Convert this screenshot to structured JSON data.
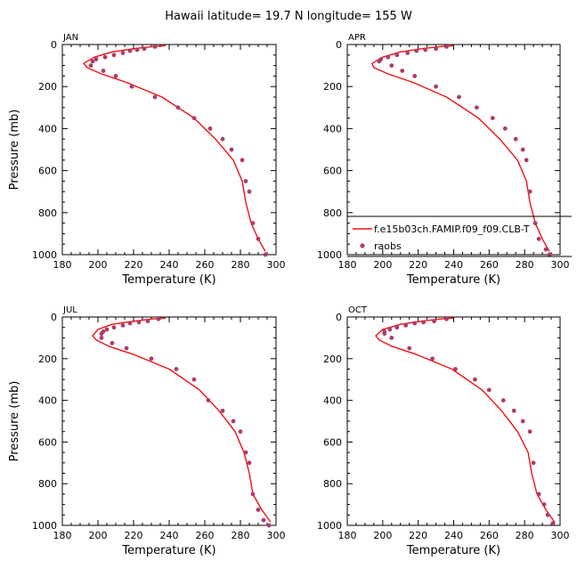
{
  "figure": {
    "title": "Hawaii   latitude= 19.7 N longitude= 155 W"
  },
  "colors": {
    "model_line": "#ee1111",
    "obs_marker": "#b03a6a",
    "axis": "#000000"
  },
  "legend": {
    "placement": "inside APR panel, lower",
    "model_label": "f.e15b03ch.FAMIP.f09_f09.CLB-T",
    "obs_label": "raobs"
  },
  "chart_data": [
    {
      "type": "scatter",
      "panel": "JAN",
      "xlabel": "Temperature (K)",
      "ylabel": "Pressure (mb)",
      "xlim": [
        180,
        300
      ],
      "ylim": [
        1000,
        0
      ],
      "y_inverted": true,
      "xticks": [
        180,
        200,
        220,
        240,
        260,
        280,
        300
      ],
      "yticks": [
        0,
        200,
        400,
        600,
        800,
        1000
      ],
      "series": [
        {
          "name": "f.e15b03ch.FAMIP.f09_f09.CLB-T",
          "kind": "line",
          "x": [
            238,
            230,
            220,
            208,
            198,
            192,
            194,
            202,
            216,
            236,
            254,
            266,
            276,
            281,
            283,
            286,
            290,
            294
          ],
          "y": [
            5,
            10,
            20,
            35,
            60,
            90,
            110,
            140,
            180,
            250,
            350,
            450,
            550,
            650,
            750,
            850,
            925,
            985
          ]
        },
        {
          "name": "raobs",
          "kind": "scatter",
          "x": [
            232,
            226,
            222,
            218,
            214,
            209,
            204,
            199,
            197,
            196,
            203,
            210,
            219,
            232,
            245,
            254,
            263,
            270,
            275,
            281,
            283,
            285,
            287,
            290,
            294
          ],
          "y": [
            10,
            20,
            25,
            30,
            40,
            50,
            60,
            70,
            80,
            100,
            125,
            150,
            200,
            250,
            300,
            350,
            400,
            450,
            500,
            550,
            650,
            700,
            850,
            925,
            1000
          ]
        }
      ]
    },
    {
      "type": "scatter",
      "panel": "APR",
      "xlabel": "Temperature (K)",
      "ylabel": "",
      "xlim": [
        180,
        300
      ],
      "ylim": [
        1000,
        0
      ],
      "y_inverted": true,
      "xticks": [
        180,
        200,
        220,
        240,
        260,
        280,
        300
      ],
      "yticks": [
        0,
        200,
        400,
        600,
        800,
        1000
      ],
      "series": [
        {
          "name": "f.e15b03ch.FAMIP.f09_f09.CLB-T",
          "kind": "line",
          "x": [
            240,
            232,
            222,
            210,
            200,
            194,
            195,
            203,
            217,
            236,
            254,
            266,
            276,
            281,
            283,
            286,
            290,
            294
          ],
          "y": [
            5,
            10,
            20,
            35,
            60,
            90,
            110,
            140,
            180,
            250,
            350,
            450,
            550,
            650,
            750,
            850,
            925,
            985
          ]
        },
        {
          "name": "raobs",
          "kind": "scatter",
          "x": [
            236,
            230,
            224,
            219,
            214,
            208,
            203,
            199,
            198,
            205,
            211,
            218,
            230,
            243,
            253,
            262,
            269,
            275,
            279,
            281,
            283,
            286,
            288,
            292,
            294
          ],
          "y": [
            10,
            20,
            25,
            30,
            40,
            50,
            60,
            70,
            80,
            100,
            125,
            150,
            200,
            250,
            300,
            350,
            400,
            450,
            500,
            550,
            700,
            850,
            925,
            975,
            1000
          ]
        }
      ]
    },
    {
      "type": "scatter",
      "panel": "JUL",
      "xlabel": "Temperature (K)",
      "ylabel": "Pressure (mb)",
      "xlim": [
        180,
        300
      ],
      "ylim": [
        1000,
        0
      ],
      "y_inverted": true,
      "xticks": [
        180,
        200,
        220,
        240,
        260,
        280,
        300
      ],
      "yticks": [
        0,
        200,
        400,
        600,
        800,
        1000
      ],
      "series": [
        {
          "name": "f.e15b03ch.FAMIP.f09_f09.CLB-T",
          "kind": "line",
          "x": [
            238,
            230,
            220,
            208,
            200,
            197,
            199,
            206,
            220,
            240,
            257,
            268,
            277,
            282,
            285,
            287,
            292,
            297
          ],
          "y": [
            5,
            10,
            20,
            35,
            60,
            90,
            110,
            140,
            180,
            250,
            350,
            450,
            550,
            650,
            750,
            850,
            925,
            985
          ]
        },
        {
          "name": "raobs",
          "kind": "scatter",
          "x": [
            234,
            228,
            223,
            218,
            214,
            209,
            205,
            203,
            202,
            202,
            208,
            216,
            230,
            244,
            254,
            262,
            270,
            276,
            280,
            283,
            285,
            287,
            290,
            293,
            296
          ],
          "y": [
            10,
            20,
            25,
            30,
            40,
            50,
            60,
            70,
            80,
            100,
            125,
            150,
            200,
            250,
            300,
            400,
            450,
            500,
            550,
            650,
            700,
            850,
            925,
            975,
            1000
          ]
        }
      ]
    },
    {
      "type": "scatter",
      "panel": "OCT",
      "xlabel": "Temperature (K)",
      "ylabel": "",
      "xlim": [
        180,
        300
      ],
      "ylim": [
        1000,
        0
      ],
      "y_inverted": true,
      "xticks": [
        180,
        200,
        220,
        240,
        260,
        280,
        300
      ],
      "yticks": [
        0,
        200,
        400,
        600,
        800,
        1000
      ],
      "series": [
        {
          "name": "f.e15b03ch.FAMIP.f09_f09.CLB-T",
          "kind": "line",
          "x": [
            240,
            232,
            222,
            210,
            200,
            196,
            198,
            205,
            219,
            239,
            256,
            267,
            276,
            282,
            284,
            287,
            292,
            297
          ],
          "y": [
            5,
            10,
            20,
            35,
            60,
            90,
            110,
            140,
            180,
            250,
            350,
            450,
            550,
            650,
            750,
            850,
            925,
            985
          ]
        },
        {
          "name": "raobs",
          "kind": "scatter",
          "x": [
            236,
            229,
            223,
            218,
            213,
            208,
            204,
            201,
            201,
            205,
            215,
            228,
            241,
            252,
            260,
            268,
            274,
            279,
            283,
            285,
            288,
            291,
            293,
            296
          ],
          "y": [
            10,
            20,
            25,
            30,
            40,
            50,
            60,
            70,
            80,
            100,
            150,
            200,
            250,
            300,
            350,
            400,
            450,
            500,
            550,
            700,
            850,
            900,
            950,
            990
          ]
        }
      ]
    }
  ]
}
